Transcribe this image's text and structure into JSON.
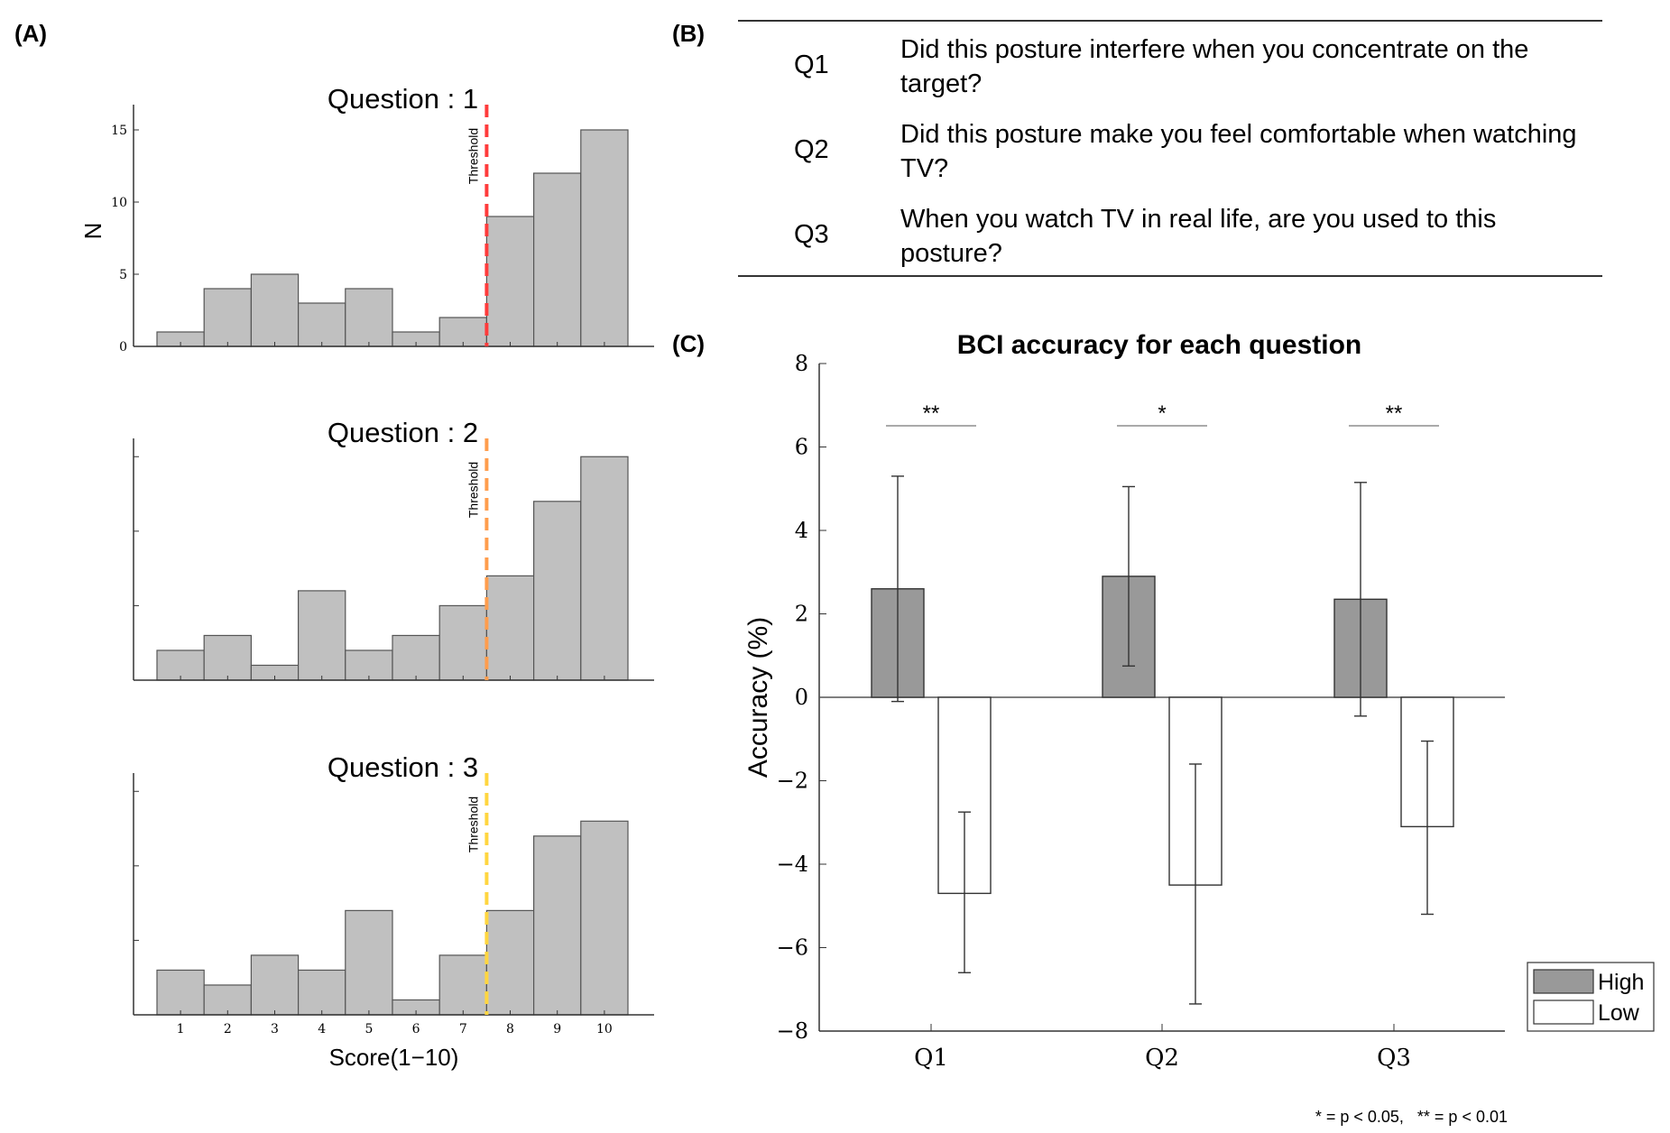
{
  "panel_labels": {
    "a": "(A)",
    "b": "(B)",
    "c": "(C)"
  },
  "questions_table": [
    {
      "id": "Q1",
      "text": "Did this posture interfere when you concentrate on the target?"
    },
    {
      "id": "Q2",
      "text": "Did this posture make you feel comfortable when watching TV?"
    },
    {
      "id": "Q3",
      "text": "When you watch TV in real life, are you used to this posture?"
    }
  ],
  "footnote": "* = p < 0.05,   ** = p < 0.01",
  "colors": {
    "hist_bar": "#c0c0c0",
    "high_bar": "#999999",
    "low_bar": "#ffffff",
    "threshold_q1": "#ff3b3b",
    "threshold_q2": "#ff9d4d",
    "threshold_q3": "#ffd640"
  },
  "chart_data": [
    {
      "type": "bar",
      "title": "Question : 1",
      "ylabel": "N",
      "xlabel": "",
      "categories": [
        "1",
        "2",
        "3",
        "4",
        "5",
        "6",
        "7",
        "8",
        "9",
        "10"
      ],
      "values": [
        1,
        4,
        5,
        3,
        4,
        1,
        2,
        9,
        12,
        15
      ],
      "ylim": [
        0,
        16
      ],
      "yticks": [
        0,
        5,
        10,
        15
      ],
      "threshold": {
        "x": 7.5,
        "label": "Threshold"
      }
    },
    {
      "type": "bar",
      "title": "Question : 2",
      "ylabel": "",
      "xlabel": "",
      "categories": [
        "1",
        "2",
        "3",
        "4",
        "5",
        "6",
        "7",
        "8",
        "9",
        "10"
      ],
      "values": [
        2,
        3,
        1,
        6,
        2,
        3,
        5,
        7,
        12,
        15
      ],
      "ylim": [
        0,
        15.5
      ],
      "threshold": {
        "x": 7.5,
        "label": "Threshold"
      }
    },
    {
      "type": "bar",
      "title": "Question : 3",
      "ylabel": "",
      "xlabel": "Score(1−10)",
      "categories": [
        "1",
        "2",
        "3",
        "4",
        "5",
        "6",
        "7",
        "8",
        "9",
        "10"
      ],
      "values": [
        3,
        2,
        4,
        3,
        7,
        1,
        4,
        7,
        12,
        13
      ],
      "ylim": [
        0,
        15.5
      ],
      "threshold": {
        "x": 7.5,
        "label": "Threshold"
      }
    },
    {
      "type": "bar",
      "title": "BCI accuracy for each question",
      "xlabel": "",
      "ylabel": "Accuracy (%)",
      "categories": [
        "Q1",
        "Q2",
        "Q3"
      ],
      "series": [
        {
          "name": "High",
          "values": [
            2.6,
            2.9,
            2.35
          ],
          "err_low": [
            -0.1,
            0.75,
            -0.45
          ],
          "err_high": [
            5.3,
            5.05,
            5.15
          ]
        },
        {
          "name": "Low",
          "values": [
            -4.7,
            -4.5,
            -3.1
          ],
          "err_low": [
            -6.6,
            -7.35,
            -5.2
          ],
          "err_high": [
            -2.75,
            -1.6,
            -1.05
          ]
        }
      ],
      "ylim": [
        -8,
        8
      ],
      "yticks": [
        8,
        6,
        4,
        2,
        0,
        -2,
        -4,
        -6,
        -8
      ],
      "ytick_labels": [
        "8",
        "6",
        "4",
        "2",
        "0",
        "−2",
        "−4",
        "−6",
        "−8"
      ],
      "significance": [
        "**",
        "*",
        "**"
      ],
      "legend": "bottom-right",
      "grid": false
    }
  ]
}
